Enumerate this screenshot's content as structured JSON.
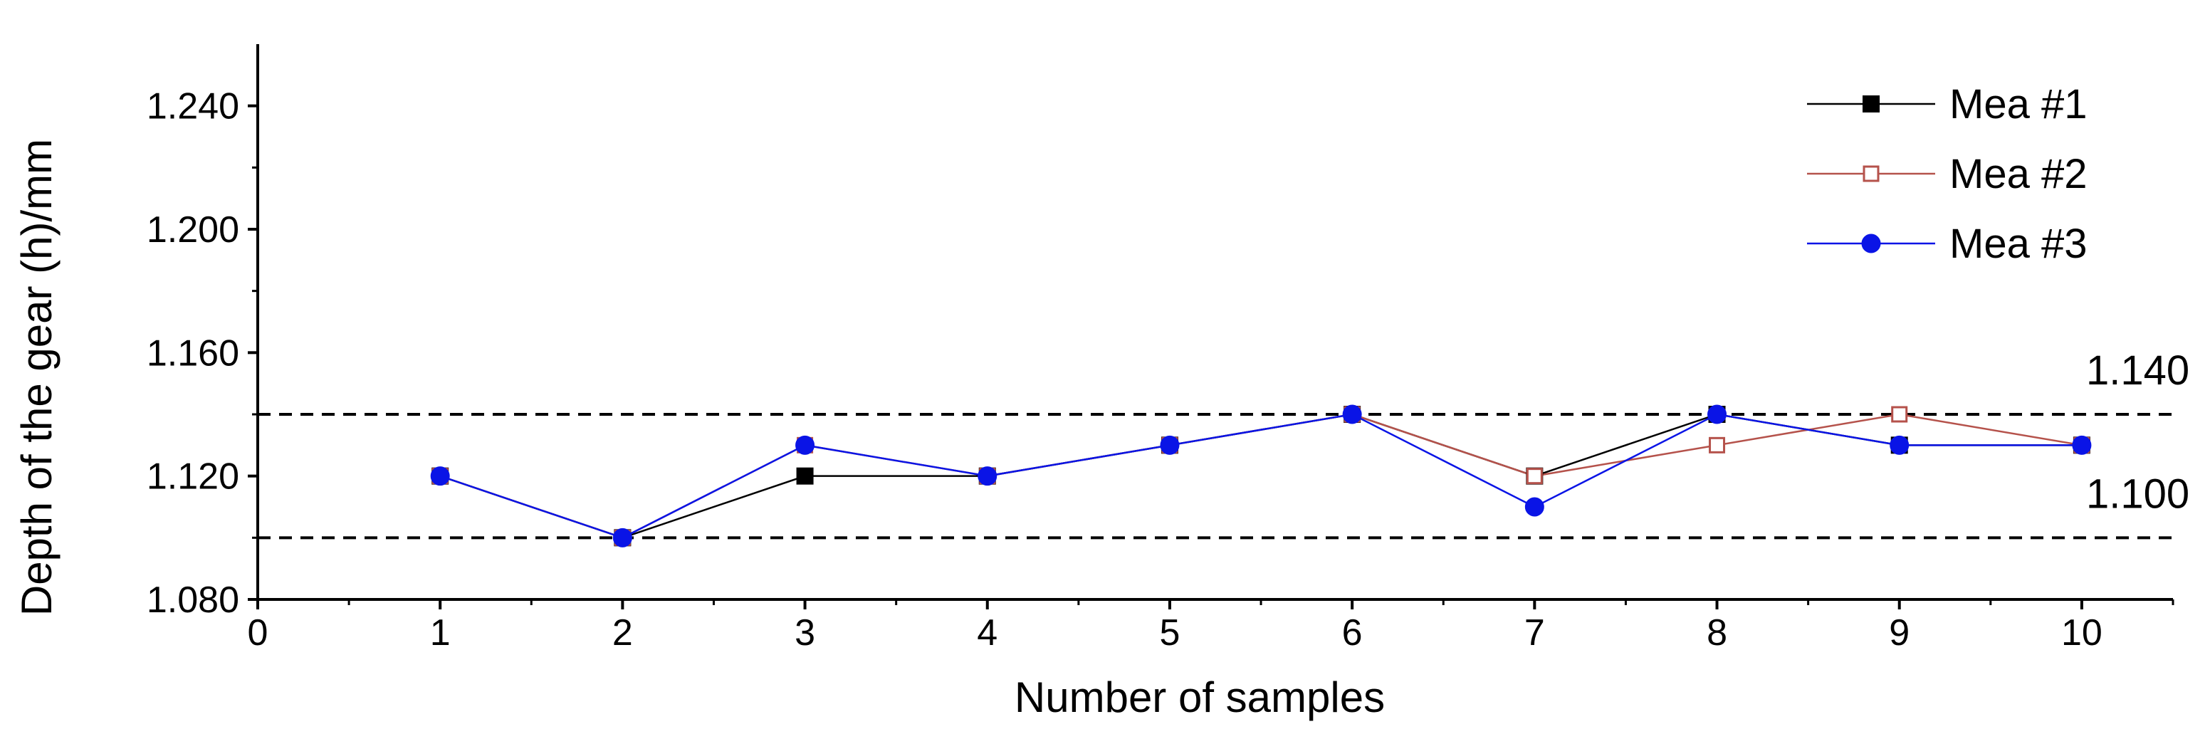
{
  "chart_data": {
    "type": "line",
    "title": "",
    "xlabel": "Number of samples",
    "ylabel": "Depth of the gear (h)/mm",
    "xlim": [
      0,
      10.5
    ],
    "ylim": [
      1.08,
      1.26
    ],
    "x_ticks": [
      0,
      1,
      2,
      3,
      4,
      5,
      6,
      7,
      8,
      9,
      10
    ],
    "y_ticks": [
      "1.080",
      "1.120",
      "1.160",
      "1.200",
      "1.240"
    ],
    "y_tick_values": [
      1.08,
      1.12,
      1.16,
      1.2,
      1.24
    ],
    "legend_position": "top-right",
    "x": [
      1,
      2,
      3,
      4,
      5,
      6,
      7,
      8,
      9,
      10
    ],
    "series": [
      {
        "name": "Mea #1",
        "color": "#000000",
        "marker": "square-filled",
        "values": [
          1.12,
          1.1,
          1.12,
          1.12,
          1.13,
          1.14,
          1.12,
          1.14,
          1.13,
          1.13
        ]
      },
      {
        "name": "Mea #2",
        "color": "#b5524b",
        "marker": "square-open",
        "values": [
          1.12,
          1.1,
          1.13,
          1.12,
          1.13,
          1.14,
          1.12,
          1.13,
          1.14,
          1.13
        ]
      },
      {
        "name": "Mea #3",
        "color": "#0a14e6",
        "marker": "circle-filled",
        "values": [
          1.12,
          1.1,
          1.13,
          1.12,
          1.13,
          1.14,
          1.11,
          1.14,
          1.13,
          1.13
        ]
      }
    ],
    "reference_lines": [
      {
        "value": 1.14,
        "label": "1.140",
        "style": "dashed"
      },
      {
        "value": 1.1,
        "label": "1.100",
        "style": "dashed"
      }
    ]
  }
}
